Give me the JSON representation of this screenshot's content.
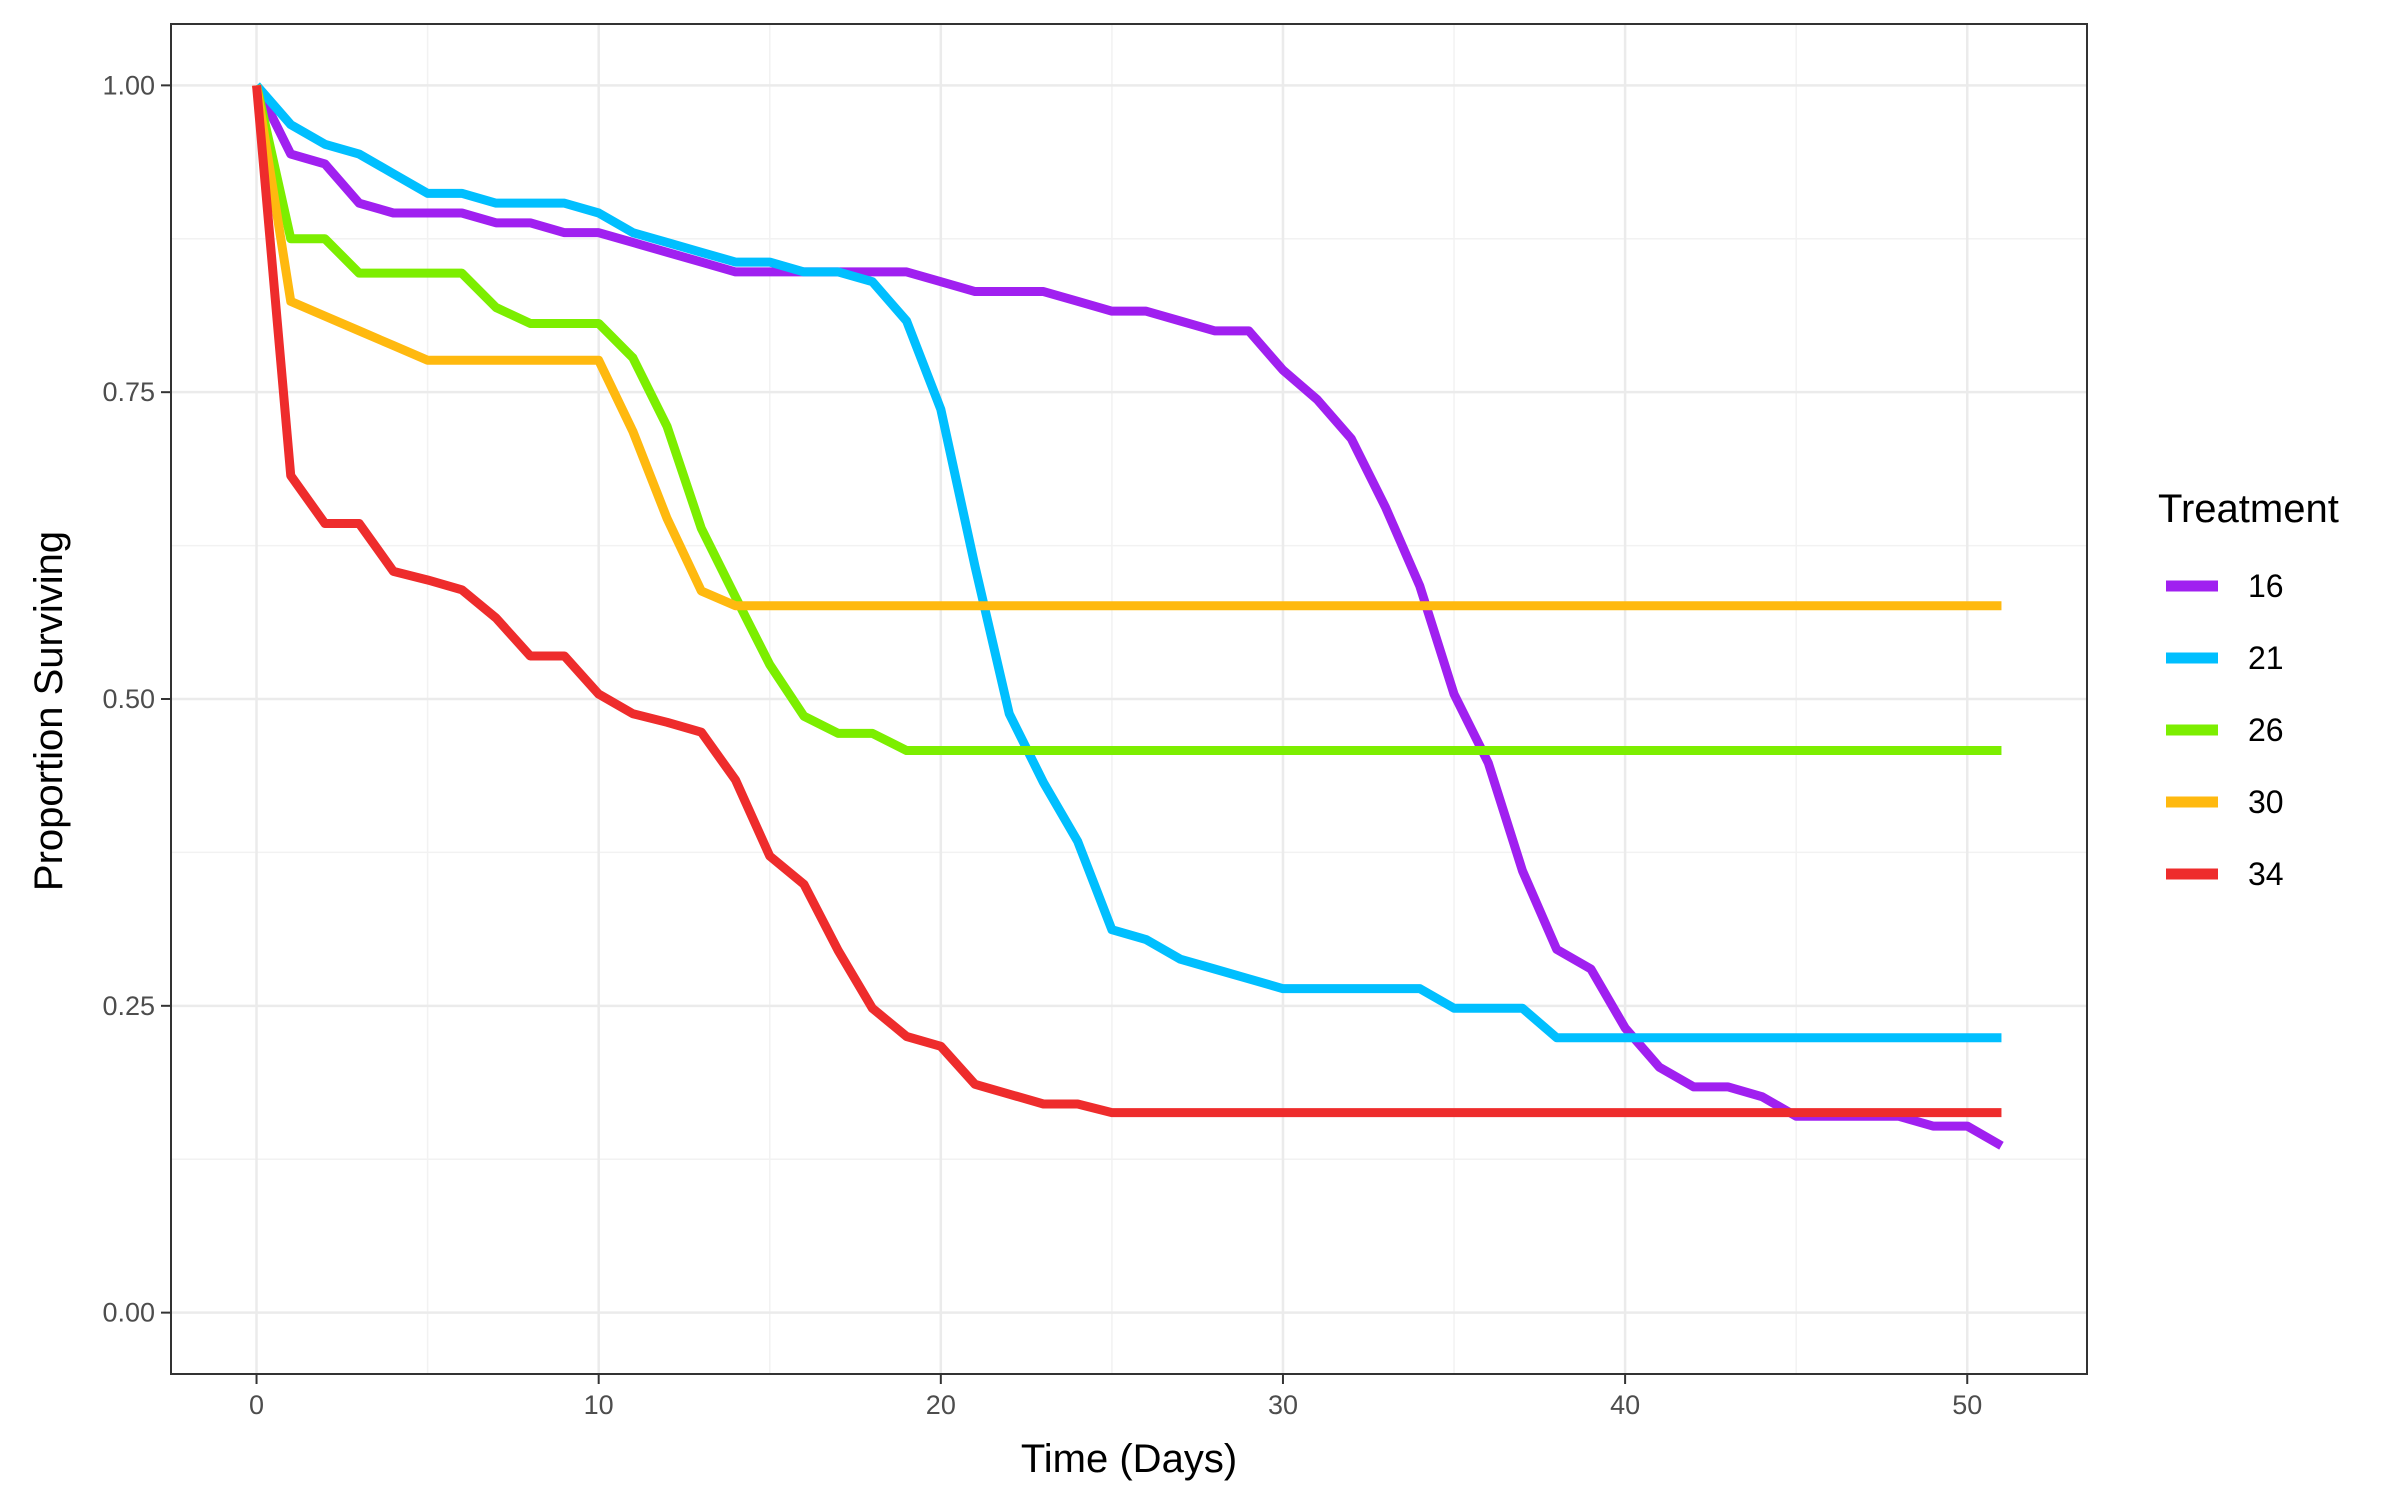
{
  "chart_data": {
    "type": "line",
    "title": "",
    "xlabel": "Time (Days)",
    "ylabel": "Proportion Surviving",
    "xlim": [
      -2.5,
      53.5
    ],
    "ylim": [
      -0.05,
      1.05
    ],
    "x_ticks": [
      0,
      10,
      20,
      30,
      40,
      50
    ],
    "x_tick_labels": [
      "0",
      "10",
      "20",
      "30",
      "40",
      "50"
    ],
    "y_ticks": [
      0,
      0.25,
      0.5,
      0.75,
      1
    ],
    "y_tick_labels": [
      "0.00",
      "0.25",
      "0.50",
      "0.75",
      "1.00"
    ],
    "grid": true,
    "legend_position": "right",
    "legend_title": "Treatment",
    "x": [
      0,
      1,
      2,
      3,
      4,
      5,
      6,
      7,
      8,
      9,
      10,
      11,
      12,
      13,
      14,
      15,
      16,
      17,
      18,
      19,
      20,
      21,
      22,
      23,
      24,
      25,
      26,
      27,
      28,
      29,
      30,
      31,
      32,
      33,
      34,
      35,
      36,
      37,
      38,
      39,
      40,
      41,
      42,
      43,
      44,
      45,
      46,
      47,
      48,
      49,
      50,
      51
    ],
    "series": [
      {
        "name": "16",
        "color": "#A020F0",
        "values": [
          1.0,
          0.944,
          0.936,
          0.904,
          0.896,
          0.896,
          0.896,
          0.888,
          0.888,
          0.88,
          0.88,
          0.872,
          0.864,
          0.856,
          0.848,
          0.848,
          0.848,
          0.848,
          0.848,
          0.848,
          0.84,
          0.832,
          0.832,
          0.832,
          0.824,
          0.816,
          0.816,
          0.808,
          0.8,
          0.8,
          0.768,
          0.744,
          0.712,
          0.656,
          0.592,
          0.504,
          0.448,
          0.36,
          0.296,
          0.28,
          0.232,
          0.2,
          0.184,
          0.184,
          0.176,
          0.16,
          0.16,
          0.16,
          0.16,
          0.152,
          0.152,
          0.136
        ]
      },
      {
        "name": "21",
        "color": "#00BFFF",
        "values": [
          1.0,
          0.968,
          0.952,
          0.944,
          0.928,
          0.912,
          0.912,
          0.904,
          0.904,
          0.904,
          0.896,
          0.88,
          0.872,
          0.864,
          0.856,
          0.856,
          0.848,
          0.848,
          0.84,
          0.808,
          0.736,
          0.608,
          0.488,
          0.432,
          0.384,
          0.312,
          0.304,
          0.288,
          0.28,
          0.272,
          0.264,
          0.264,
          0.264,
          0.264,
          0.264,
          0.248,
          0.248,
          0.248,
          0.224,
          0.224,
          0.224,
          0.224,
          0.224,
          0.224,
          0.224,
          0.224,
          0.224,
          0.224,
          0.224,
          0.224,
          0.224,
          0.224
        ]
      },
      {
        "name": "26",
        "color": "#7CEE00",
        "values": [
          1.0,
          0.875,
          0.875,
          0.847,
          0.847,
          0.847,
          0.847,
          0.819,
          0.806,
          0.806,
          0.806,
          0.778,
          0.722,
          0.639,
          0.583,
          0.528,
          0.486,
          0.472,
          0.472,
          0.458,
          0.458,
          0.458,
          0.458,
          0.458,
          0.458,
          0.458,
          0.458,
          0.458,
          0.458,
          0.458,
          0.458,
          0.458,
          0.458,
          0.458,
          0.458,
          0.458,
          0.458,
          0.458,
          0.458,
          0.458,
          0.458,
          0.458,
          0.458,
          0.458,
          0.458,
          0.458,
          0.458,
          0.458,
          0.458,
          0.458,
          0.458,
          0.458
        ]
      },
      {
        "name": "30",
        "color": "#FFB90F",
        "values": [
          1.0,
          0.824,
          0.812,
          0.8,
          0.788,
          0.776,
          0.776,
          0.776,
          0.776,
          0.776,
          0.776,
          0.718,
          0.647,
          0.588,
          0.576,
          0.576,
          0.576,
          0.576,
          0.576,
          0.576,
          0.576,
          0.576,
          0.576,
          0.576,
          0.576,
          0.576,
          0.576,
          0.576,
          0.576,
          0.576,
          0.576,
          0.576,
          0.576,
          0.576,
          0.576,
          0.576,
          0.576,
          0.576,
          0.576,
          0.576,
          0.576,
          0.576,
          0.576,
          0.576,
          0.576,
          0.576,
          0.576,
          0.576,
          0.576,
          0.576,
          0.576,
          0.576
        ]
      },
      {
        "name": "34",
        "color": "#EE2C2C",
        "values": [
          1.0,
          0.682,
          0.643,
          0.643,
          0.604,
          0.597,
          0.589,
          0.566,
          0.535,
          0.535,
          0.504,
          0.488,
          0.481,
          0.473,
          0.434,
          0.372,
          0.349,
          0.295,
          0.248,
          0.225,
          0.217,
          0.186,
          0.178,
          0.17,
          0.17,
          0.163,
          0.163,
          0.163,
          0.163,
          0.163,
          0.163,
          0.163,
          0.163,
          0.163,
          0.163,
          0.163,
          0.163,
          0.163,
          0.163,
          0.163,
          0.163,
          0.163,
          0.163,
          0.163,
          0.163,
          0.163,
          0.163,
          0.163,
          0.163,
          0.163,
          0.163,
          0.163
        ]
      }
    ]
  }
}
